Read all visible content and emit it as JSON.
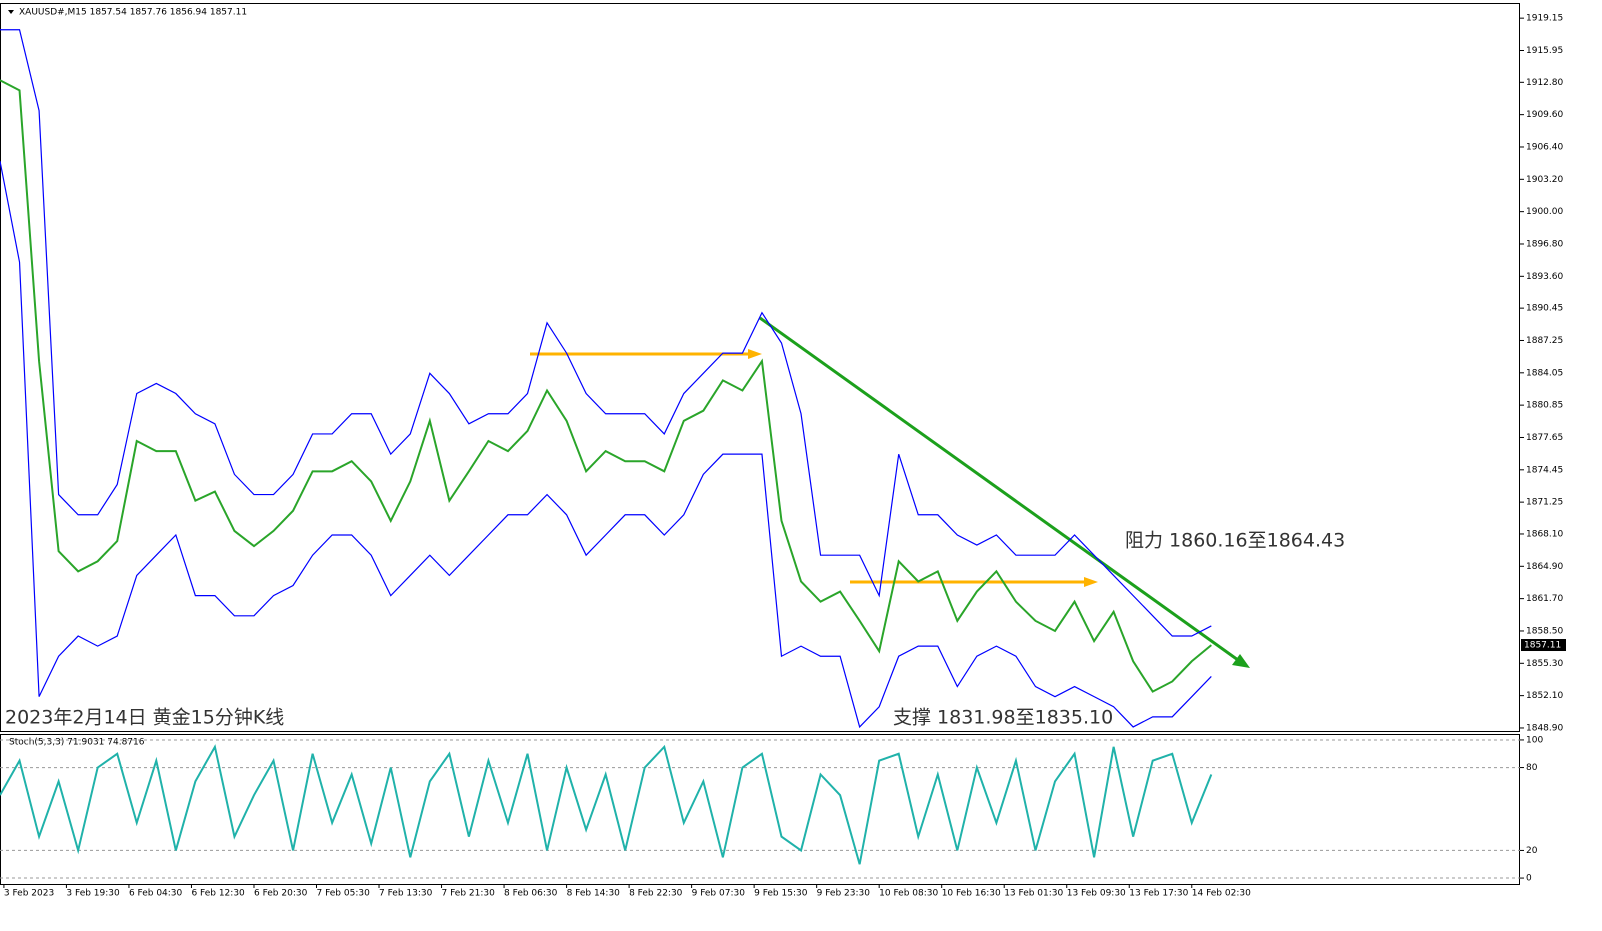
{
  "chart_data": [
    {
      "type": "line",
      "title": "XAUUSD#,M15 1857.54 1857.76 1856.94 1857.11",
      "annotations": [
        "2023年2月14日 黄金15分钟K线",
        "阻力 1860.16至1864.43",
        "支撑 1831.98至1835.10"
      ],
      "last_price": 1857.11,
      "x": [
        0,
        10,
        20,
        30,
        40,
        50,
        60,
        70,
        80,
        90,
        100,
        110,
        120,
        130,
        140,
        150,
        160,
        170,
        180,
        190,
        200,
        210,
        220,
        230,
        240,
        250,
        260,
        270,
        280,
        290,
        300,
        310,
        320,
        330,
        340,
        350,
        360,
        370,
        380,
        390,
        400,
        410,
        420,
        430,
        440,
        450,
        460,
        470,
        480,
        490,
        500,
        510,
        520,
        530,
        540,
        550,
        560,
        570,
        580,
        590,
        600,
        610,
        620
      ],
      "xlim": [
        0,
        778
      ],
      "xticks": [
        {
          "value": 2,
          "label": "3 Feb 2023"
        },
        {
          "value": 34,
          "label": "3 Feb 19:30"
        },
        {
          "value": 66,
          "label": "6 Feb 04:30"
        },
        {
          "value": 98,
          "label": "6 Feb 12:30"
        },
        {
          "value": 130,
          "label": "6 Feb 20:30"
        },
        {
          "value": 162,
          "label": "7 Feb 05:30"
        },
        {
          "value": 194,
          "label": "7 Feb 13:30"
        },
        {
          "value": 226,
          "label": "7 Feb 21:30"
        },
        {
          "value": 258,
          "label": "8 Feb 06:30"
        },
        {
          "value": 290,
          "label": "8 Feb 14:30"
        },
        {
          "value": 322,
          "label": "8 Feb 22:30"
        },
        {
          "value": 354,
          "label": "9 Feb 07:30"
        },
        {
          "value": 386,
          "label": "9 Feb 15:30"
        },
        {
          "value": 418,
          "label": "9 Feb 23:30"
        },
        {
          "value": 450,
          "label": "10 Feb 08:30"
        },
        {
          "value": 482,
          "label": "10 Feb 16:30"
        },
        {
          "value": 514,
          "label": "13 Feb 01:30"
        },
        {
          "value": 546,
          "label": "13 Feb 09:30"
        },
        {
          "value": 578,
          "label": "13 Feb 17:30"
        },
        {
          "value": 610,
          "label": "14 Feb 02:30"
        }
      ],
      "ylim": [
        1848.6,
        1920.65
      ],
      "yticks": [
        1919.15,
        1915.95,
        {
          "value": 1912.8,
          "label": "1912.80"
        },
        {
          "value": 1909.6,
          "label": "1909.60"
        },
        {
          "value": 1906.4,
          "label": "1906.40"
        },
        {
          "value": 1903.2,
          "label": "1903.20"
        },
        {
          "value": 1900,
          "label": "1900.00"
        },
        {
          "value": 1896.8,
          "label": "1896.80"
        },
        {
          "value": 1893.6,
          "label": "1893.60"
        },
        1890.45,
        1887.25,
        1884.05,
        1880.85,
        1877.65,
        1874.45,
        1871.25,
        {
          "value": 1868.1,
          "label": "1868.10"
        },
        {
          "value": 1864.9,
          "label": "1864.90"
        },
        {
          "value": 1861.7,
          "label": "1861.70"
        },
        {
          "value": 1858.5,
          "label": "1858.50"
        },
        {
          "value": 1855.3,
          "label": "1855.30"
        },
        {
          "value": 1852.1,
          "label": "1852.10"
        },
        {
          "value": 1848.9,
          "label": "1848.90"
        }
      ],
      "series": [
        {
          "color": "#2aa52a",
          "values": [
            1913.0,
            1912.0,
            1885.2,
            1866.4,
            1864.4,
            1865.4,
            1867.4,
            1877.3,
            1876.3,
            1876.3,
            1871.4,
            1872.3,
            1868.4,
            1866.9,
            1868.4,
            1870.4,
            1874.3,
            1874.3,
            1875.3,
            1873.3,
            1869.4,
            1873.3,
            1879.3,
            1871.4,
            1874.3,
            1877.3,
            1876.3,
            1878.3,
            1882.3,
            1879.3,
            1874.3,
            1876.3,
            1875.3,
            1875.3,
            1874.3,
            1879.3,
            1880.3,
            1883.3,
            1882.3,
            1885.2,
            1869.4,
            1863.4,
            1861.4,
            1862.4,
            1859.5,
            1856.5,
            1865.4,
            1863.4,
            1864.4,
            1859.5,
            1862.4,
            1864.4,
            1861.4,
            1859.5,
            1858.5,
            1861.4,
            1857.5,
            1860.4,
            1855.5,
            1852.5,
            1853.5,
            1855.5,
            1857.1
          ]
        },
        {
          "color": "#0000ff",
          "values": [
            1918,
            1918,
            1910,
            1872,
            1870,
            1870,
            1873,
            1882,
            1883,
            1882,
            1880,
            1879,
            1874,
            1872,
            1872,
            1874,
            1878,
            1878,
            1880,
            1880,
            1876,
            1878,
            1884,
            1882,
            1879,
            1880,
            1880,
            1882,
            1889,
            1886,
            1882,
            1880,
            1880,
            1880,
            1878,
            1882,
            1884,
            1886,
            1886,
            1890,
            1887,
            1880,
            1866,
            1866,
            1866,
            1862,
            1876,
            1870,
            1870,
            1868,
            1867,
            1868,
            1866,
            1866,
            1866,
            1868,
            1866,
            1864,
            1862,
            1860,
            1858,
            1858,
            1859
          ]
        },
        {
          "color": "#0000ff",
          "values": [
            1905,
            1895,
            1852,
            1856,
            1858,
            1857,
            1858,
            1864,
            1866,
            1868,
            1862,
            1862,
            1860,
            1860,
            1862,
            1863,
            1866,
            1868,
            1868,
            1866,
            1862,
            1864,
            1866,
            1864,
            1866,
            1868,
            1870,
            1870,
            1872,
            1870,
            1866,
            1868,
            1870,
            1870,
            1868,
            1870,
            1874,
            1876,
            1876,
            1876,
            1856,
            1857,
            1856,
            1856,
            1849,
            1851,
            1856,
            1857,
            1857,
            1853,
            1856,
            1857,
            1856,
            1853,
            1852,
            1853,
            1852,
            1851,
            1849,
            1850,
            1850,
            1852,
            1854
          ]
        }
      ]
    },
    {
      "type": "line",
      "title": "Stoch(5,3,3) 71.9031 74.8716",
      "ylim": [
        -4.3,
        104.3
      ],
      "yticks": [
        0,
        20,
        80,
        100
      ],
      "series": [
        {
          "color": "#20b2aa",
          "values": [
            60,
            85,
            30,
            70,
            20,
            80,
            90,
            40,
            85,
            20,
            70,
            95,
            30,
            60,
            85,
            20,
            90,
            40,
            75,
            25,
            80,
            15,
            70,
            90,
            30,
            85,
            40,
            90,
            20,
            80,
            35,
            75,
            20,
            80,
            95,
            40,
            70,
            15,
            80,
            90,
            30,
            20,
            75,
            60,
            10,
            85,
            90,
            30,
            75,
            20,
            80,
            40,
            85,
            20,
            70,
            90,
            15,
            95,
            30,
            85,
            90,
            40,
            75
          ]
        }
      ]
    }
  ]
}
